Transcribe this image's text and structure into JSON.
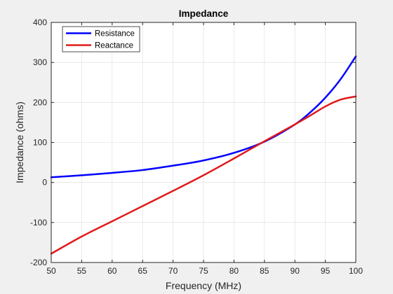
{
  "chart_data": {
    "type": "line",
    "title": "Impedance",
    "xlabel": "Frequency (MHz)",
    "ylabel": "Impedance (ohms)",
    "xlim": [
      50,
      100
    ],
    "ylim": [
      -200,
      400
    ],
    "xticks": [
      "50",
      "55",
      "60",
      "65",
      "70",
      "75",
      "80",
      "85",
      "90",
      "95",
      "100"
    ],
    "yticks": [
      "-200",
      "-100",
      "0",
      "100",
      "200",
      "300",
      "400"
    ],
    "grid": true,
    "legend_position": "top-left",
    "series": [
      {
        "name": "Resistance",
        "color": "#0000ff",
        "x": [
          50,
          55,
          60,
          65,
          70,
          75,
          80,
          85,
          90,
          92.5,
          95,
          97.5,
          100
        ],
        "y": [
          13,
          18,
          24,
          31,
          42,
          55,
          74,
          102,
          145,
          175,
          212,
          258,
          315
        ]
      },
      {
        "name": "Reactance",
        "color": "#e01a1a",
        "x": [
          50,
          55,
          60,
          65,
          70,
          75,
          80,
          85,
          90,
          92.5,
          95,
          97.5,
          100
        ],
        "y": [
          -178,
          -135,
          -97,
          -59,
          -21,
          18,
          60,
          103,
          145,
          167,
          190,
          207,
          215
        ]
      }
    ]
  }
}
